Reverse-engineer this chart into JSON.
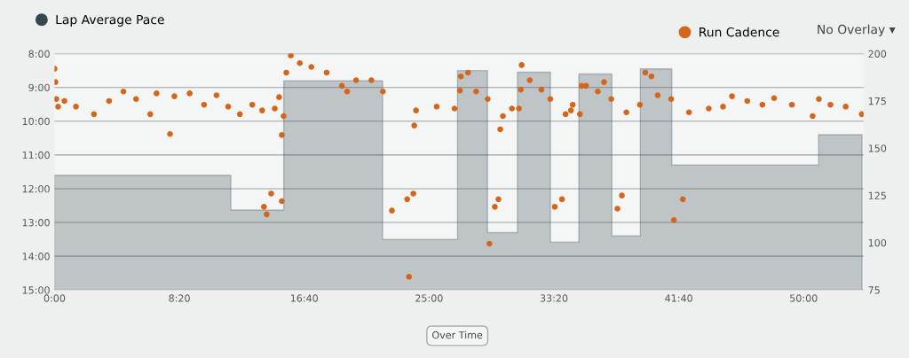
{
  "chart_data": {
    "type": "area",
    "xlim": [
      0,
      54
    ],
    "xticks": [
      {
        "value": 0,
        "label": "0:00"
      },
      {
        "value": 8.333,
        "label": "8:20"
      },
      {
        "value": 16.667,
        "label": "16:40"
      },
      {
        "value": 25,
        "label": "25:00"
      },
      {
        "value": 33.333,
        "label": "33:20"
      },
      {
        "value": 41.667,
        "label": "41:40"
      },
      {
        "value": 50,
        "label": "50:00"
      }
    ],
    "ylim": [
      15,
      8
    ],
    "yticks": [
      {
        "value": 8,
        "label": "8:00"
      },
      {
        "value": 9,
        "label": "9:00"
      },
      {
        "value": 10,
        "label": "10:00"
      },
      {
        "value": 11,
        "label": "11:00"
      },
      {
        "value": 12,
        "label": "12:00"
      },
      {
        "value": 13,
        "label": "13:00"
      },
      {
        "value": 14,
        "label": "14:00"
      },
      {
        "value": 15,
        "label": "15:00"
      }
    ],
    "y2lim": [
      75,
      200
    ],
    "y2ticks": [
      75,
      100,
      125,
      150,
      175,
      200
    ],
    "grid": "y",
    "legend": "top",
    "marker": "circle",
    "annotations": [
      "No Overlay ▾",
      "Over Time"
    ],
    "series": [
      {
        "name": "Lap Average Pace",
        "color": "#37474f",
        "marker": "none",
        "x": [
          0,
          0,
          11.77,
          11.77,
          15.3,
          15.3,
          21.9,
          21.9,
          26.9,
          26.9,
          28.9,
          28.9,
          30.9,
          30.9,
          33.1,
          33.1,
          35.0,
          35.0,
          37.2,
          37.2,
          39.1,
          39.1,
          41.2,
          41.2,
          51.0,
          51.0,
          53.9,
          53.9
        ],
        "values": [
          15,
          11.6,
          11.6,
          12.63,
          12.63,
          8.8,
          8.8,
          13.5,
          13.5,
          8.5,
          8.5,
          13.3,
          13.3,
          8.55,
          8.55,
          13.58,
          13.58,
          8.6,
          8.6,
          13.4,
          13.4,
          8.45,
          8.45,
          11.3,
          11.3,
          10.4,
          10.4,
          15
        ]
      },
      {
        "name": "Run Cadence",
        "type": "scatter",
        "axis": "y2",
        "color": "#d4661c",
        "x": [
          0,
          0.06,
          0.12,
          0.24,
          0.66,
          1.43,
          2.63,
          3.64,
          4.6,
          5.44,
          6.39,
          6.81,
          7.71,
          8.0,
          9.02,
          9.98,
          10.81,
          11.59,
          12.37,
          13.2,
          13.86,
          13.98,
          14.16,
          14.46,
          14.7,
          14.99,
          15.17,
          15.17,
          15.29,
          15.47,
          15.77,
          16.37,
          17.14,
          18.16,
          19.18,
          19.53,
          20.13,
          21.15,
          21.92,
          22.52,
          23.54,
          23.66,
          23.95,
          24.01,
          24.13,
          25.51,
          26.7,
          27.06,
          27.12,
          27.6,
          28.14,
          28.91,
          29.03,
          29.39,
          29.63,
          29.75,
          29.93,
          30.53,
          31.0,
          31.12,
          31.18,
          31.72,
          32.5,
          33.09,
          33.39,
          33.87,
          34.11,
          34.47,
          34.59,
          35.07,
          35.18,
          35.48,
          36.26,
          36.68,
          37.16,
          37.57,
          37.87,
          38.17,
          39.07,
          39.43,
          39.84,
          40.26,
          41.16,
          41.34,
          41.94,
          42.35,
          43.67,
          44.62,
          45.22,
          46.24,
          47.25,
          48.03,
          49.22,
          50.6,
          51.02,
          51.79,
          52.81,
          53.88
        ],
        "values": [
          192,
          185,
          176,
          172,
          175,
          172,
          168,
          175,
          180,
          176,
          168,
          179,
          157.5,
          177.5,
          179,
          173,
          178,
          172,
          168,
          173,
          170,
          119,
          115,
          126,
          171,
          177,
          157,
          122,
          167,
          190,
          199,
          195,
          193,
          190,
          183,
          180,
          186,
          186,
          180,
          117,
          123,
          82,
          126,
          162,
          170,
          172,
          171,
          180.5,
          188,
          190,
          180,
          176,
          99.5,
          119,
          123,
          160,
          167,
          171,
          171,
          181,
          194,
          186,
          181,
          176,
          119,
          123,
          168,
          170,
          173,
          168,
          183,
          183,
          180,
          185,
          176,
          118,
          125,
          169,
          173,
          190,
          188,
          178,
          176,
          112,
          123,
          169,
          171,
          172,
          177.5,
          175,
          173,
          176.5,
          173,
          167,
          176,
          173,
          172,
          168
        ]
      }
    ]
  }
}
